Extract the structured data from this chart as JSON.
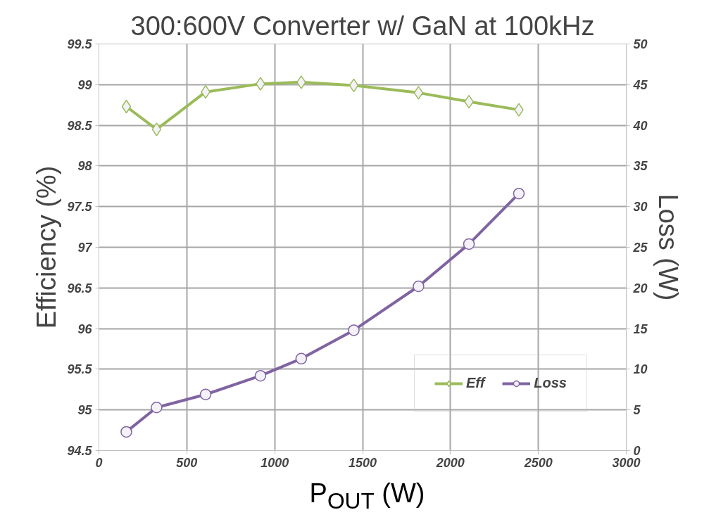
{
  "chart_data": {
    "type": "line",
    "title": "300:600V Converter w/ GaN at 100kHz",
    "xlabel": "P$_{OUT}$ (W)",
    "ylabel": "Efficiency (%)",
    "y2label": "Loss (W)",
    "x": [
      156,
      328,
      607,
      919,
      1151,
      1450,
      1818,
      2105,
      2389
    ],
    "series": [
      {
        "name": "Eff",
        "color": "#9bbb59",
        "marker": "diamond",
        "values": [
          98.73,
          98.45,
          98.91,
          99.01,
          99.03,
          98.99,
          98.9,
          98.79,
          98.69
        ]
      },
      {
        "name": "Loss",
        "color": "#8064a2",
        "marker": "circle",
        "axis": "y2",
        "values": [
          2.3,
          5.3,
          6.9,
          9.2,
          11.3,
          14.8,
          20.2,
          25.4,
          31.6
        ]
      }
    ],
    "xlim": [
      0,
      3000
    ],
    "xticks": [
      0,
      500,
      1000,
      1500,
      2000,
      2500,
      3000
    ],
    "ylim": [
      94.5,
      99.5
    ],
    "yticks": [
      94.5,
      95,
      95.5,
      96,
      96.5,
      97,
      97.5,
      98,
      98.5,
      99,
      99.5
    ],
    "y2lim": [
      0,
      50
    ],
    "y2ticks": [
      0,
      5,
      10,
      15,
      20,
      25,
      30,
      35,
      40,
      45,
      50
    ],
    "grid": true,
    "legend": "bottom right",
    "line_style": "solid"
  }
}
